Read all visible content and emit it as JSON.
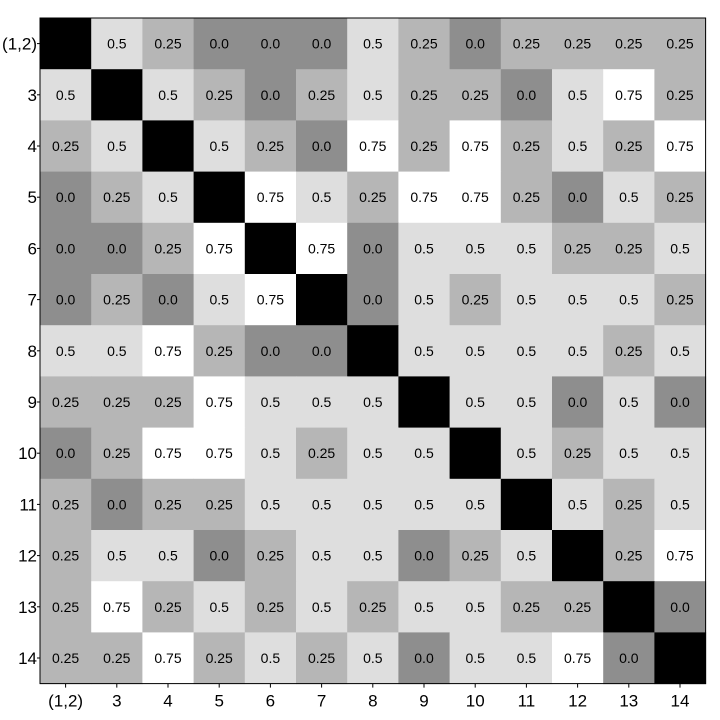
{
  "chart_data": {
    "type": "heatmap",
    "title": "",
    "xlabel": "",
    "ylabel": "",
    "row_labels": [
      "(1,2)",
      "3",
      "4",
      "5",
      "6",
      "7",
      "8",
      "9",
      "10",
      "11",
      "12",
      "13",
      "14"
    ],
    "col_labels": [
      "(1,2)",
      "3",
      "4",
      "5",
      "6",
      "7",
      "8",
      "9",
      "10",
      "11",
      "12",
      "13",
      "14"
    ],
    "diagonal": "blank (black)",
    "value_range": [
      0,
      0.75
    ],
    "colormap": {
      "diagonal": "#000000",
      "0.0": "#8e8e8e",
      "0.25": "#b6b6b6",
      "0.5": "#dedede",
      "0.75": "#ffffff"
    },
    "values": [
      [
        null,
        0.5,
        0.25,
        0.0,
        0.0,
        0.0,
        0.5,
        0.25,
        0.0,
        0.25,
        0.25,
        0.25,
        0.25
      ],
      [
        0.5,
        null,
        0.5,
        0.25,
        0.0,
        0.25,
        0.5,
        0.25,
        0.25,
        0.0,
        0.5,
        0.75,
        0.25
      ],
      [
        0.25,
        0.5,
        null,
        0.5,
        0.25,
        0.0,
        0.75,
        0.25,
        0.75,
        0.25,
        0.5,
        0.25,
        0.75
      ],
      [
        0.0,
        0.25,
        0.5,
        null,
        0.75,
        0.5,
        0.25,
        0.75,
        0.75,
        0.25,
        0.0,
        0.5,
        0.25
      ],
      [
        0.0,
        0.0,
        0.25,
        0.75,
        null,
        0.75,
        0.0,
        0.5,
        0.5,
        0.5,
        0.25,
        0.25,
        0.5
      ],
      [
        0.0,
        0.25,
        0.0,
        0.5,
        0.75,
        null,
        0.0,
        0.5,
        0.25,
        0.5,
        0.5,
        0.5,
        0.25
      ],
      [
        0.5,
        0.5,
        0.75,
        0.25,
        0.0,
        0.0,
        null,
        0.5,
        0.5,
        0.5,
        0.5,
        0.25,
        0.5
      ],
      [
        0.25,
        0.25,
        0.25,
        0.75,
        0.5,
        0.5,
        0.5,
        null,
        0.5,
        0.5,
        0.0,
        0.5,
        0.0
      ],
      [
        0.0,
        0.25,
        0.75,
        0.75,
        0.5,
        0.25,
        0.5,
        0.5,
        null,
        0.5,
        0.25,
        0.5,
        0.5
      ],
      [
        0.25,
        0.0,
        0.25,
        0.25,
        0.5,
        0.5,
        0.5,
        0.5,
        0.5,
        null,
        0.5,
        0.25,
        0.5
      ],
      [
        0.25,
        0.5,
        0.5,
        0.0,
        0.25,
        0.5,
        0.5,
        0.0,
        0.25,
        0.5,
        null,
        0.25,
        0.75
      ],
      [
        0.25,
        0.75,
        0.25,
        0.5,
        0.25,
        0.5,
        0.25,
        0.5,
        0.5,
        0.25,
        0.25,
        null,
        0.0
      ],
      [
        0.25,
        0.25,
        0.75,
        0.25,
        0.5,
        0.25,
        0.5,
        0.0,
        0.5,
        0.5,
        0.75,
        0.0,
        null
      ]
    ]
  }
}
